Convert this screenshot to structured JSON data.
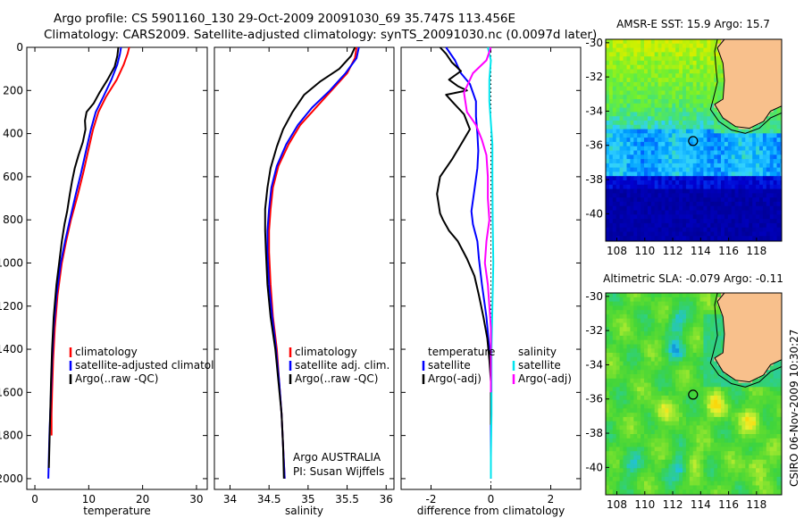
{
  "header": {
    "line1": "Argo profile: CS 5901160_130 29-Oct-2009 20091030_69 35.747S 113.456E",
    "line2": "Climatology: CARS2009. Satellite-adjusted climatology: synTS_20091030.nc (0.0097d later)"
  },
  "credit_right": "CSIRO 06-Nov-2009 10:30:27",
  "colors": {
    "climatology": "#ff0000",
    "satellite": "#0000ff",
    "argo": "#000000",
    "sal_satellite": "#00e5ee",
    "sal_argo": "#ff00ff",
    "land": "#f8c08c",
    "sst_cold": "#00008b",
    "sst_warm": "#ffa000",
    "sla_green": "#3dd43d",
    "sla_yellow": "#e8f030"
  },
  "chart_data": [
    {
      "type": "line",
      "id": "temperature-profile",
      "xlabel": "temperature",
      "ylabel": "",
      "xlim": [
        -1.5,
        32
      ],
      "ylim": [
        2050,
        0
      ],
      "xticks": [
        0,
        10,
        20,
        30
      ],
      "yticks": [
        0,
        200,
        400,
        600,
        800,
        1000,
        1200,
        1400,
        1600,
        1800,
        2000
      ],
      "legend": {
        "placement": "lower-right",
        "entries": [
          "climatology",
          "satellite-adjusted climatology",
          "Argo(..raw -QC)"
        ]
      },
      "series": [
        {
          "name": "climatology",
          "color_key": "climatology",
          "points": [
            [
              17.5,
              0
            ],
            [
              17.2,
              30
            ],
            [
              16.5,
              80
            ],
            [
              15.2,
              150
            ],
            [
              13.2,
              230
            ],
            [
              11.8,
              300
            ],
            [
              10.8,
              380
            ],
            [
              9.9,
              480
            ],
            [
              9.0,
              580
            ],
            [
              8.0,
              680
            ],
            [
              6.7,
              800
            ],
            [
              5.8,
              900
            ],
            [
              5.0,
              1000
            ],
            [
              4.2,
              1150
            ],
            [
              3.7,
              1300
            ],
            [
              3.4,
              1450
            ],
            [
              3.2,
              1600
            ],
            [
              3.1,
              1700
            ],
            [
              3.1,
              1800
            ]
          ]
        },
        {
          "name": "satellite-adjusted climatology",
          "color_key": "satellite",
          "points": [
            [
              16.0,
              0
            ],
            [
              15.8,
              30
            ],
            [
              15.3,
              80
            ],
            [
              14.2,
              150
            ],
            [
              12.7,
              230
            ],
            [
              11.3,
              300
            ],
            [
              10.4,
              380
            ],
            [
              9.5,
              480
            ],
            [
              8.6,
              580
            ],
            [
              7.6,
              680
            ],
            [
              6.5,
              800
            ],
            [
              5.6,
              900
            ],
            [
              4.8,
              1000
            ],
            [
              4.0,
              1150
            ],
            [
              3.5,
              1300
            ],
            [
              3.2,
              1450
            ],
            [
              3.0,
              1600
            ],
            [
              2.7,
              1800
            ],
            [
              2.5,
              2000
            ]
          ]
        },
        {
          "name": "Argo(..raw -QC)",
          "color_key": "argo",
          "points": [
            [
              15.5,
              0
            ],
            [
              15.3,
              40
            ],
            [
              14.8,
              90
            ],
            [
              13.5,
              150
            ],
            [
              12.0,
              210
            ],
            [
              10.9,
              260
            ],
            [
              9.6,
              300
            ],
            [
              9.3,
              340
            ],
            [
              9.4,
              380
            ],
            [
              8.9,
              440
            ],
            [
              8.1,
              500
            ],
            [
              7.4,
              560
            ],
            [
              6.9,
              620
            ],
            [
              6.5,
              680
            ],
            [
              6.0,
              760
            ],
            [
              5.5,
              820
            ],
            [
              5.0,
              900
            ],
            [
              4.5,
              1000
            ],
            [
              4.0,
              1100
            ],
            [
              3.5,
              1250
            ],
            [
              3.2,
              1400
            ],
            [
              3.0,
              1550
            ],
            [
              2.8,
              1750
            ],
            [
              2.6,
              1950
            ]
          ]
        }
      ]
    },
    {
      "type": "line",
      "id": "salinity-profile",
      "xlabel": "salinity",
      "ylabel": "",
      "xlim": [
        33.8,
        36.1
      ],
      "ylim": [
        2050,
        0
      ],
      "xticks": [
        34,
        34.5,
        35,
        35.5,
        36
      ],
      "legend": {
        "placement": "lower-right",
        "entries": [
          "climatology",
          "satellite adj. clim.",
          "Argo(..raw -QC)"
        ]
      },
      "annotations": [
        "Argo AUSTRALIA",
        "PI: Susan Wijffels"
      ],
      "series": [
        {
          "name": "climatology",
          "color_key": "climatology",
          "points": [
            [
              35.62,
              0
            ],
            [
              35.6,
              50
            ],
            [
              35.5,
              120
            ],
            [
              35.3,
              200
            ],
            [
              35.1,
              280
            ],
            [
              34.9,
              360
            ],
            [
              34.75,
              450
            ],
            [
              34.62,
              550
            ],
            [
              34.55,
              650
            ],
            [
              34.52,
              750
            ],
            [
              34.5,
              850
            ],
            [
              34.5,
              950
            ],
            [
              34.52,
              1100
            ],
            [
              34.55,
              1250
            ],
            [
              34.6,
              1400
            ],
            [
              34.63,
              1550
            ],
            [
              34.66,
              1700
            ],
            [
              34.68,
              1850
            ],
            [
              34.7,
              2000
            ]
          ]
        },
        {
          "name": "satellite adj. clim.",
          "color_key": "satellite",
          "points": [
            [
              35.65,
              0
            ],
            [
              35.62,
              50
            ],
            [
              35.48,
              120
            ],
            [
              35.28,
              200
            ],
            [
              35.05,
              280
            ],
            [
              34.87,
              360
            ],
            [
              34.72,
              450
            ],
            [
              34.6,
              550
            ],
            [
              34.53,
              650
            ],
            [
              34.5,
              750
            ],
            [
              34.48,
              850
            ],
            [
              34.48,
              950
            ],
            [
              34.5,
              1100
            ],
            [
              34.54,
              1250
            ],
            [
              34.59,
              1400
            ],
            [
              34.63,
              1550
            ],
            [
              34.66,
              1700
            ],
            [
              34.68,
              1850
            ],
            [
              34.7,
              2000
            ]
          ]
        },
        {
          "name": "Argo(..raw -QC)",
          "color_key": "argo",
          "points": [
            [
              35.6,
              0
            ],
            [
              35.55,
              40
            ],
            [
              35.4,
              100
            ],
            [
              35.15,
              160
            ],
            [
              34.95,
              220
            ],
            [
              34.8,
              300
            ],
            [
              34.68,
              380
            ],
            [
              34.6,
              460
            ],
            [
              34.52,
              560
            ],
            [
              34.48,
              650
            ],
            [
              34.45,
              750
            ],
            [
              34.45,
              850
            ],
            [
              34.46,
              950
            ],
            [
              34.48,
              1100
            ],
            [
              34.52,
              1250
            ],
            [
              34.58,
              1400
            ],
            [
              34.62,
              1550
            ],
            [
              34.66,
              1700
            ],
            [
              34.68,
              1850
            ],
            [
              34.69,
              2000
            ]
          ]
        }
      ]
    },
    {
      "type": "line",
      "id": "difference-profile",
      "xlabel": "difference from climatology",
      "ylabel": "",
      "xlim": [
        -3,
        3
      ],
      "ylim": [
        2050,
        0
      ],
      "xticks": [
        -2,
        0,
        2
      ],
      "legend": {
        "placement": "lower-right",
        "entries": [
          "temperature",
          "satellite",
          "Argo(-adj)",
          "salinity",
          "satellite",
          "Argo(-adj)"
        ]
      },
      "series": [
        {
          "name": "satellite",
          "group": "temperature",
          "color_key": "satellite",
          "points": [
            [
              -1.5,
              0
            ],
            [
              -1.2,
              60
            ],
            [
              -1.0,
              120
            ],
            [
              -0.7,
              170
            ],
            [
              -0.5,
              250
            ],
            [
              -0.5,
              320
            ],
            [
              -0.45,
              400
            ],
            [
              -0.42,
              480
            ],
            [
              -0.45,
              560
            ],
            [
              -0.55,
              660
            ],
            [
              -0.65,
              760
            ],
            [
              -0.6,
              820
            ],
            [
              -0.45,
              900
            ],
            [
              -0.4,
              980
            ],
            [
              -0.3,
              1100
            ],
            [
              -0.15,
              1250
            ],
            [
              -0.05,
              1400
            ],
            [
              0,
              1500
            ],
            [
              0,
              2000
            ]
          ]
        },
        {
          "name": "Argo(-adj)",
          "group": "temperature",
          "color_key": "argo",
          "points": [
            [
              -1.7,
              0
            ],
            [
              -1.5,
              30
            ],
            [
              -1.3,
              70
            ],
            [
              -1.0,
              110
            ],
            [
              -1.4,
              150
            ],
            [
              -1.1,
              180
            ],
            [
              -0.8,
              200
            ],
            [
              -1.5,
              220
            ],
            [
              -1.3,
              250
            ],
            [
              -0.9,
              310
            ],
            [
              -0.7,
              380
            ],
            [
              -1.0,
              450
            ],
            [
              -1.3,
              520
            ],
            [
              -1.7,
              600
            ],
            [
              -1.8,
              680
            ],
            [
              -1.7,
              770
            ],
            [
              -1.6,
              800
            ],
            [
              -1.4,
              850
            ],
            [
              -1.1,
              900
            ],
            [
              -0.8,
              980
            ],
            [
              -0.55,
              1060
            ],
            [
              -0.4,
              1150
            ],
            [
              -0.25,
              1250
            ],
            [
              -0.12,
              1350
            ],
            [
              -0.05,
              1450
            ],
            [
              0,
              1550
            ],
            [
              0,
              1750
            ]
          ]
        },
        {
          "name": "satellite",
          "group": "salinity",
          "color_key": "sal_satellite",
          "points": [
            [
              -0.1,
              0
            ],
            [
              0,
              60
            ],
            [
              -0.05,
              150
            ],
            [
              -0.05,
              250
            ],
            [
              0,
              350
            ],
            [
              0.05,
              450
            ],
            [
              0.05,
              600
            ],
            [
              0.06,
              800
            ],
            [
              0.08,
              1000
            ],
            [
              0.05,
              1200
            ],
            [
              0.02,
              1400
            ],
            [
              0.02,
              1700
            ],
            [
              0,
              1900
            ],
            [
              0,
              2000
            ]
          ]
        },
        {
          "name": "Argo(-adj)",
          "group": "salinity",
          "color_key": "sal_argo",
          "points": [
            [
              0,
              0
            ],
            [
              -0.15,
              60
            ],
            [
              -0.6,
              120
            ],
            [
              -0.9,
              210
            ],
            [
              -0.8,
              300
            ],
            [
              -0.5,
              360
            ],
            [
              -0.3,
              430
            ],
            [
              -0.15,
              500
            ],
            [
              -0.1,
              600
            ],
            [
              -0.1,
              700
            ],
            [
              -0.05,
              800
            ],
            [
              -0.15,
              900
            ],
            [
              -0.2,
              1000
            ],
            [
              -0.1,
              1100
            ],
            [
              -0.05,
              1200
            ],
            [
              0,
              1300
            ],
            [
              0,
              1600
            ]
          ]
        }
      ]
    },
    {
      "type": "heatmap",
      "id": "sst-map",
      "title": "AMSR-E SST: 15.9 Argo: 15.7",
      "xlim": [
        107.2,
        119.8
      ],
      "ylim": [
        -41.6,
        -29.8
      ],
      "xticks": [
        108,
        110,
        112,
        114,
        116,
        118
      ],
      "yticks": [
        -30,
        -32,
        -34,
        -36,
        -38,
        -40
      ],
      "marker": {
        "lon": 113.456,
        "lat": -35.747
      }
    },
    {
      "type": "heatmap",
      "id": "sla-map",
      "title": "Altimetric SLA: -0.079 Argo: -0.11",
      "xlim": [
        107.2,
        119.8
      ],
      "ylim": [
        -41.6,
        -29.8
      ],
      "xticks": [
        108,
        110,
        112,
        114,
        116,
        118
      ],
      "yticks": [
        -30,
        -32,
        -34,
        -36,
        -38,
        -40
      ],
      "marker": {
        "lon": 113.456,
        "lat": -35.747
      }
    }
  ]
}
